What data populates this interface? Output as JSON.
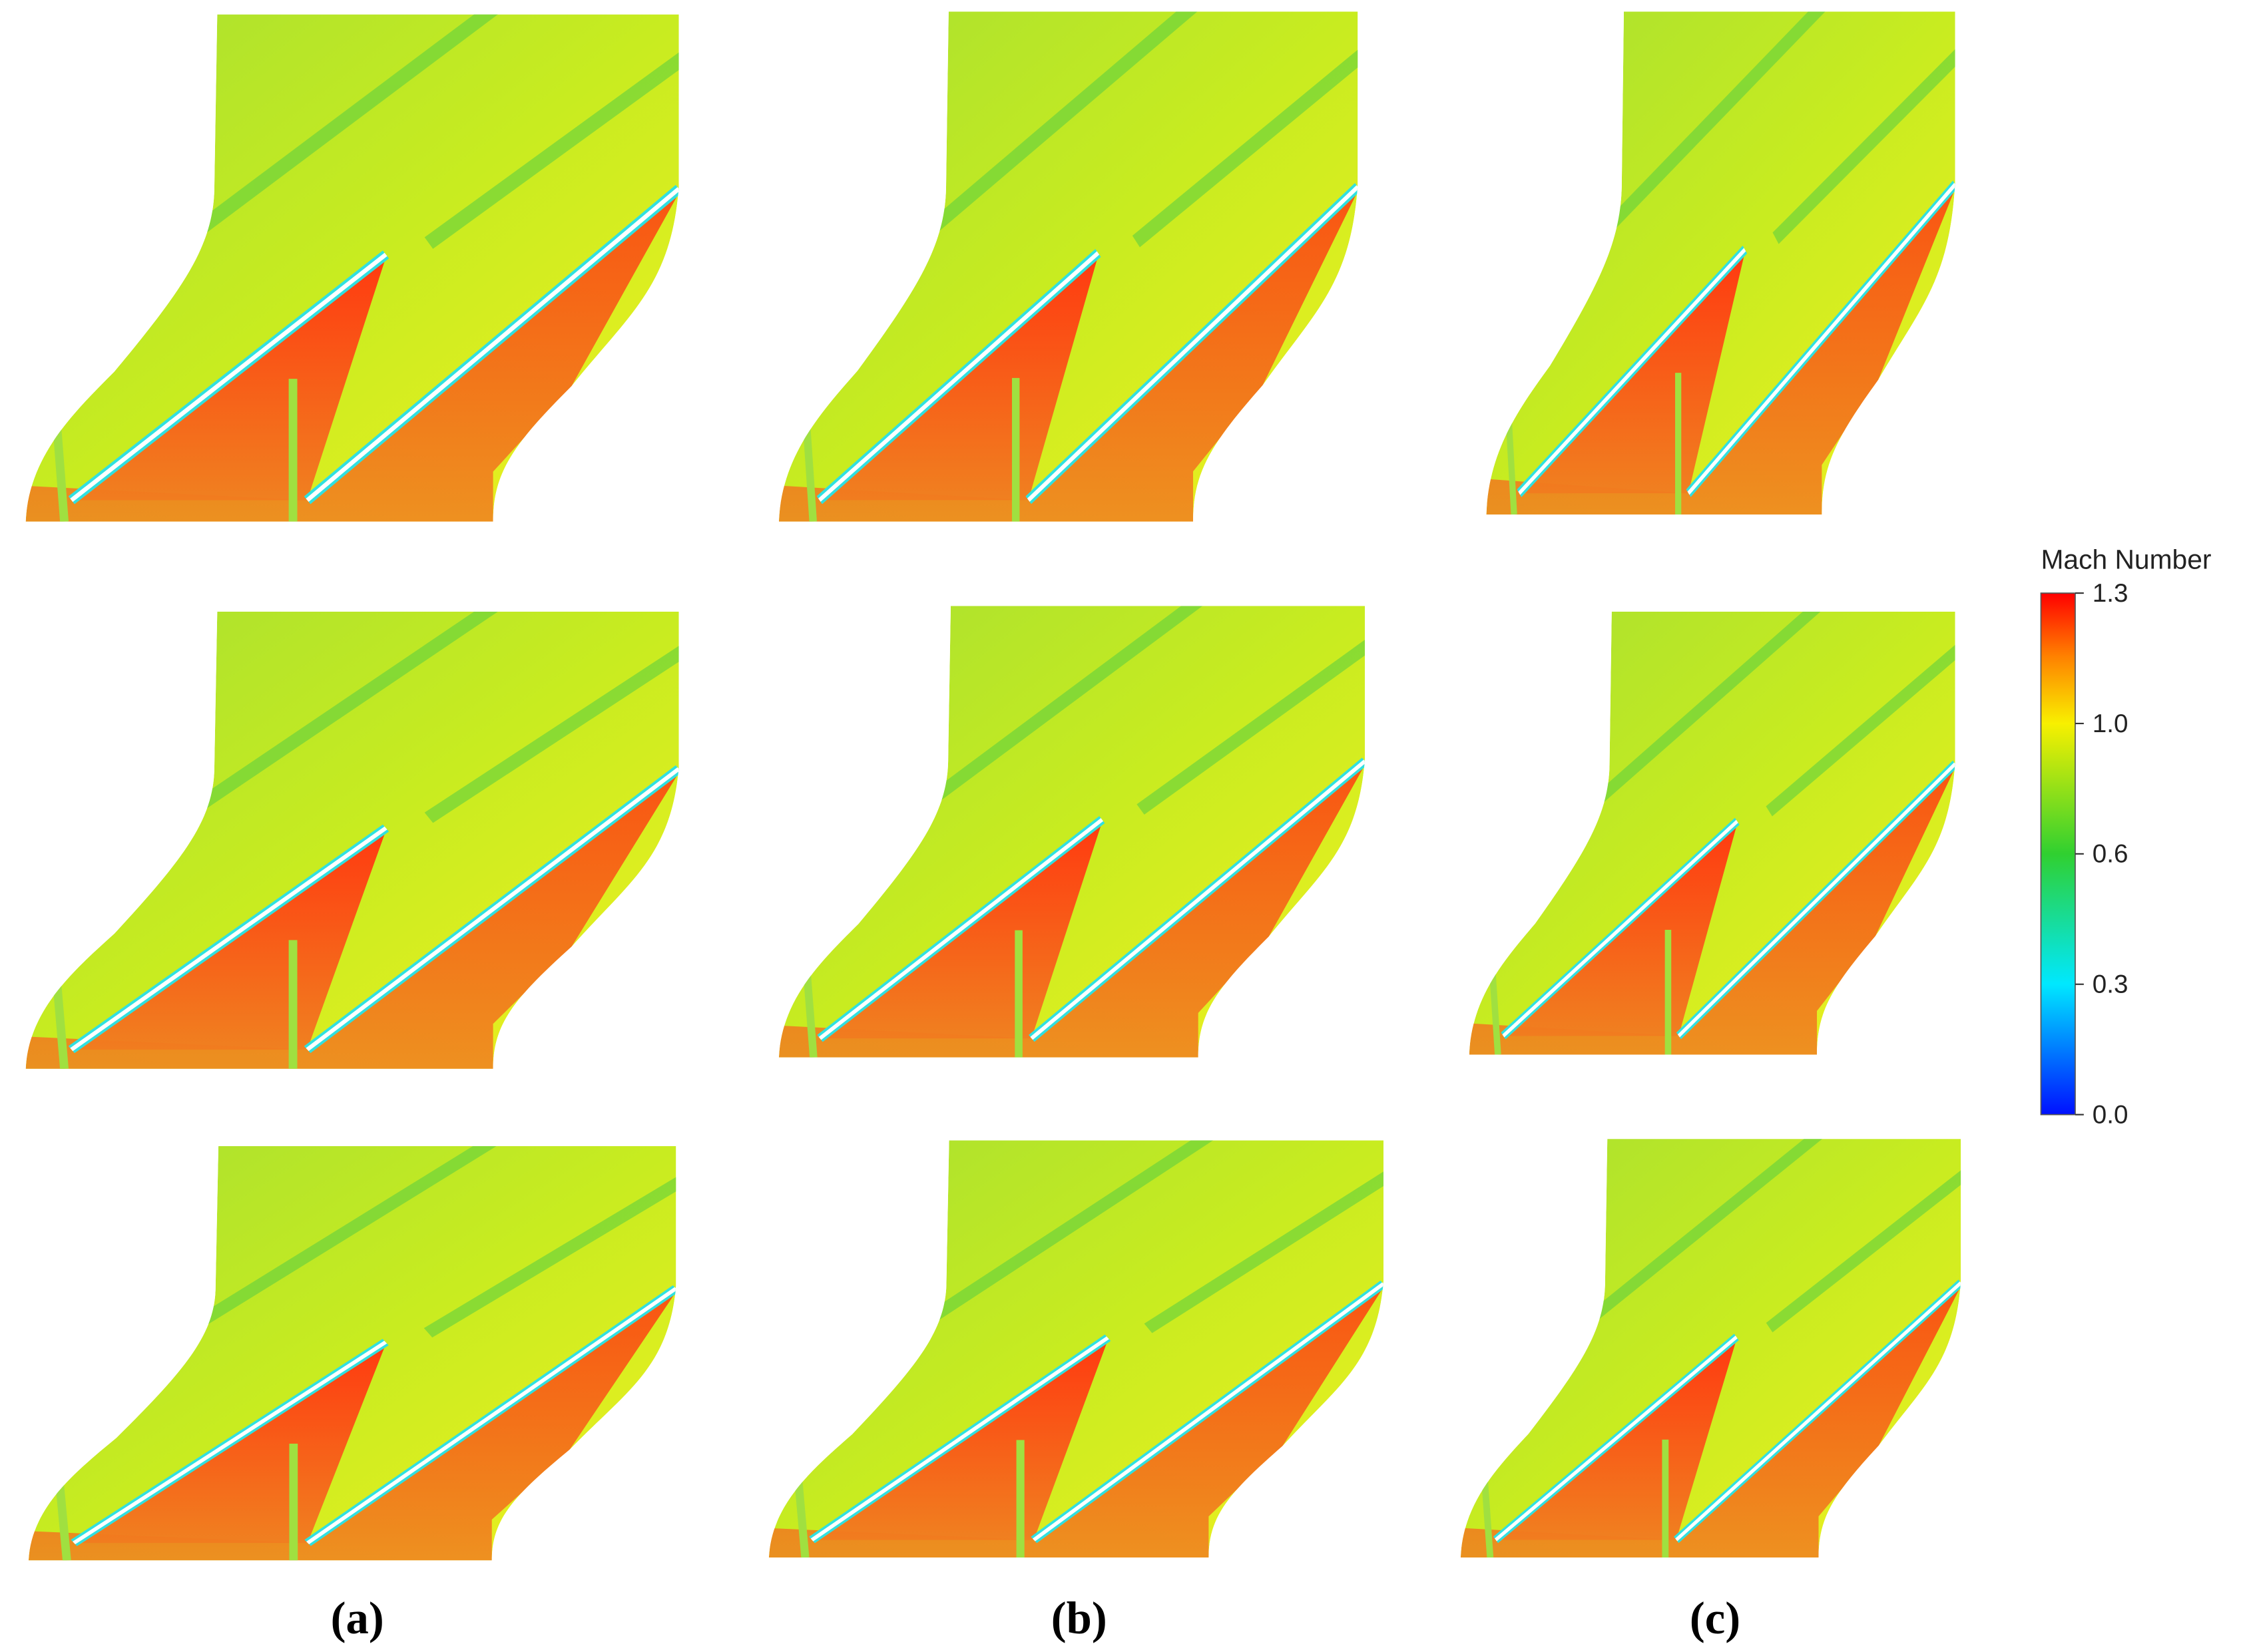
{
  "colorbar": {
    "title": "Mach Number",
    "ticks": [
      "1.3",
      "1.0",
      "0.6",
      "0.3",
      "0.0"
    ]
  },
  "panel_labels": [
    "(a)",
    "(b)",
    "(c)"
  ]
}
